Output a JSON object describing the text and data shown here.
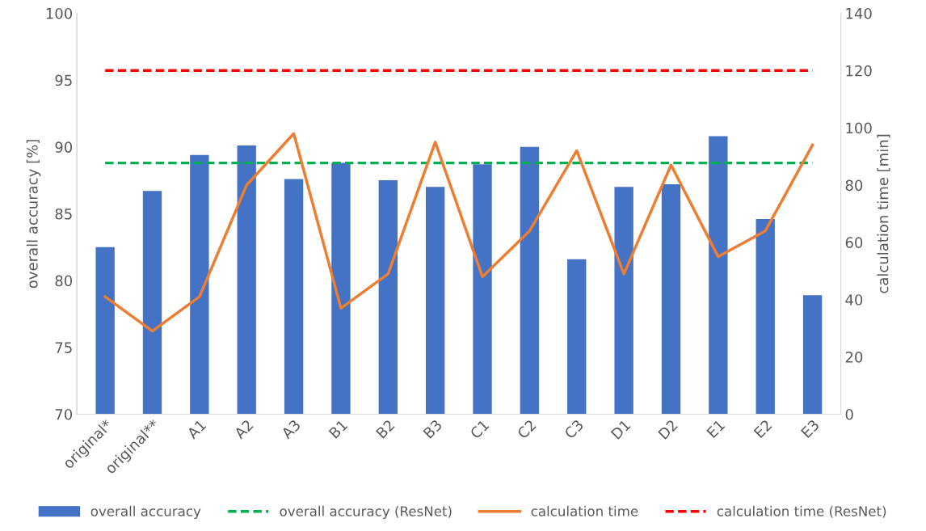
{
  "chart_data": {
    "type": "bar",
    "ylabel": "overall accuracy [%]",
    "y2label": "calculation time [min]",
    "categories": [
      "original*",
      "original**",
      "A1",
      "A2",
      "A3",
      "B1",
      "B2",
      "B3",
      "C1",
      "C2",
      "C3",
      "D1",
      "D2",
      "E1",
      "E2",
      "E3"
    ],
    "series": [
      {
        "name": "overall accuracy",
        "color": "#4472c4",
        "values": [
          82.5,
          86.7,
          89.4,
          90.1,
          87.6,
          88.8,
          87.5,
          87.0,
          88.7,
          90.0,
          81.6,
          87.0,
          87.2,
          90.8,
          84.6,
          78.9
        ]
      },
      {
        "name": "calculation time",
        "type": "line",
        "axis": "y2",
        "color": "#ed7d31",
        "values": [
          41,
          29,
          41,
          80,
          98,
          37,
          49,
          95,
          48,
          64,
          92,
          49,
          87,
          55,
          64,
          94
        ]
      }
    ],
    "ref_lines": [
      {
        "axis": "y",
        "value": 88.8,
        "label": "overall accuracy (ResNet)",
        "color": "#00b050",
        "line_style": "dashed"
      },
      {
        "axis": "y2",
        "value": 120,
        "label": "calculation time (ResNet)",
        "color": "#ff0000",
        "line_style": "dashed"
      }
    ],
    "ylim": [
      70,
      100
    ],
    "yticks": [
      70,
      75,
      80,
      85,
      90,
      95,
      100
    ],
    "y2lim": [
      0,
      140
    ],
    "y2ticks": [
      0,
      20,
      40,
      60,
      80,
      100,
      120,
      140
    ],
    "grid": false,
    "legend": "bottom"
  }
}
